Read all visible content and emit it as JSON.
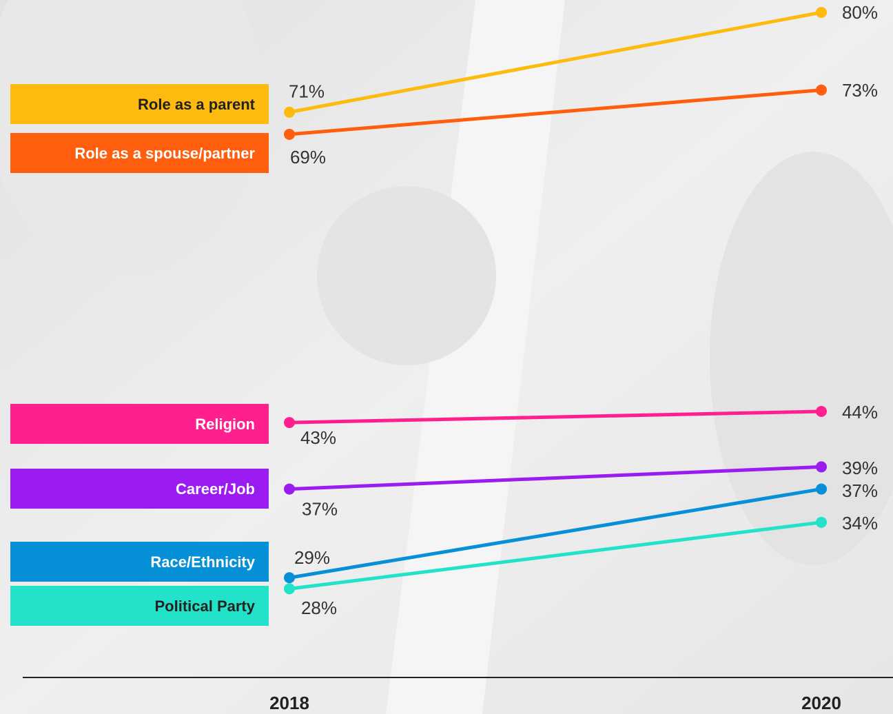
{
  "chart_data": {
    "type": "line",
    "categories": [
      "2018",
      "2020"
    ],
    "ylim": [
      20,
      80
    ],
    "series": [
      {
        "name": "Role as a parent",
        "color": "#fdbb0f",
        "label_color": "#222222",
        "values": [
          71,
          80
        ],
        "value_labels": [
          "71%",
          "80%"
        ]
      },
      {
        "name": "Role as a spouse/partner",
        "color": "#ff5e0e",
        "label_color": "#ffffff",
        "values": [
          69,
          73
        ],
        "value_labels": [
          "69%",
          "73%"
        ]
      },
      {
        "name": "Religion",
        "color": "#ff1f8e",
        "label_color": "#ffffff",
        "values": [
          43,
          44
        ],
        "value_labels": [
          "43%",
          "44%"
        ]
      },
      {
        "name": "Career/Job",
        "color": "#9b1cf0",
        "label_color": "#ffffff",
        "values": [
          37,
          39
        ],
        "value_labels": [
          "37%",
          "39%"
        ]
      },
      {
        "name": "Race/Ethnicity",
        "color": "#0690d8",
        "label_color": "#ffffff",
        "values": [
          29,
          37
        ],
        "value_labels": [
          "29%",
          "37%"
        ]
      },
      {
        "name": "Political Party",
        "color": "#22e3c9",
        "label_color": "#222222",
        "values": [
          28,
          34
        ],
        "value_labels": [
          "28%",
          "34%"
        ]
      }
    ]
  }
}
